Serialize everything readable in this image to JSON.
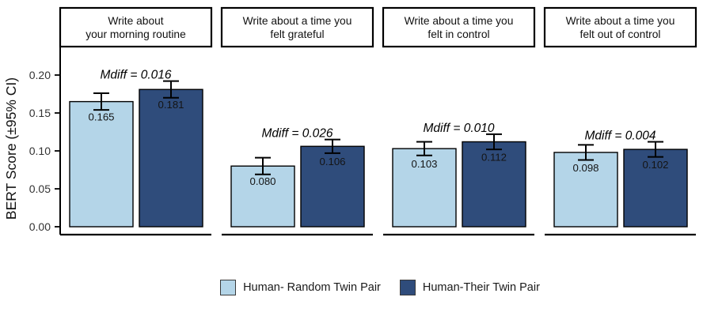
{
  "chart_data": {
    "type": "bar",
    "title": "",
    "xlabel": "",
    "ylabel": "BERT Score (±95% CI)",
    "ylim": [
      0,
      0.2375
    ],
    "grid": false,
    "legend_position": "bottom",
    "yticks": [
      {
        "value": 0.0,
        "label": "0.00"
      },
      {
        "value": 0.05,
        "label": "0.05"
      },
      {
        "value": 0.1,
        "label": "0.10"
      },
      {
        "value": 0.15,
        "label": "0.15"
      },
      {
        "value": 0.2,
        "label": "0.20"
      }
    ],
    "series": [
      {
        "name": "Human- Random Twin Pair",
        "color": "#B4D5E8"
      },
      {
        "name": "Human-Their Twin Pair",
        "color": "#2F4C7B"
      }
    ],
    "facets": [
      {
        "title_lines": [
          "Write about",
          "your morning routine"
        ],
        "mdiff_label": "Mdiff = 0.016",
        "bars": [
          {
            "value": 0.165,
            "label": "0.165",
            "ci": 0.011
          },
          {
            "value": 0.181,
            "label": "0.181",
            "ci": 0.011
          }
        ]
      },
      {
        "title_lines": [
          "Write about a time you",
          "felt grateful"
        ],
        "mdiff_label": "Mdiff = 0.026",
        "bars": [
          {
            "value": 0.08,
            "label": "0.080",
            "ci": 0.011
          },
          {
            "value": 0.106,
            "label": "0.106",
            "ci": 0.009
          }
        ]
      },
      {
        "title_lines": [
          "Write about a time you",
          "felt in control"
        ],
        "mdiff_label": "Mdiff = 0.010",
        "bars": [
          {
            "value": 0.103,
            "label": "0.103",
            "ci": 0.009
          },
          {
            "value": 0.112,
            "label": "0.112",
            "ci": 0.01
          }
        ]
      },
      {
        "title_lines": [
          "Write about a time you",
          "felt out of control"
        ],
        "mdiff_label": "Mdiff = 0.004",
        "bars": [
          {
            "value": 0.098,
            "label": "0.098",
            "ci": 0.01
          },
          {
            "value": 0.102,
            "label": "0.102",
            "ci": 0.01
          }
        ]
      }
    ]
  }
}
